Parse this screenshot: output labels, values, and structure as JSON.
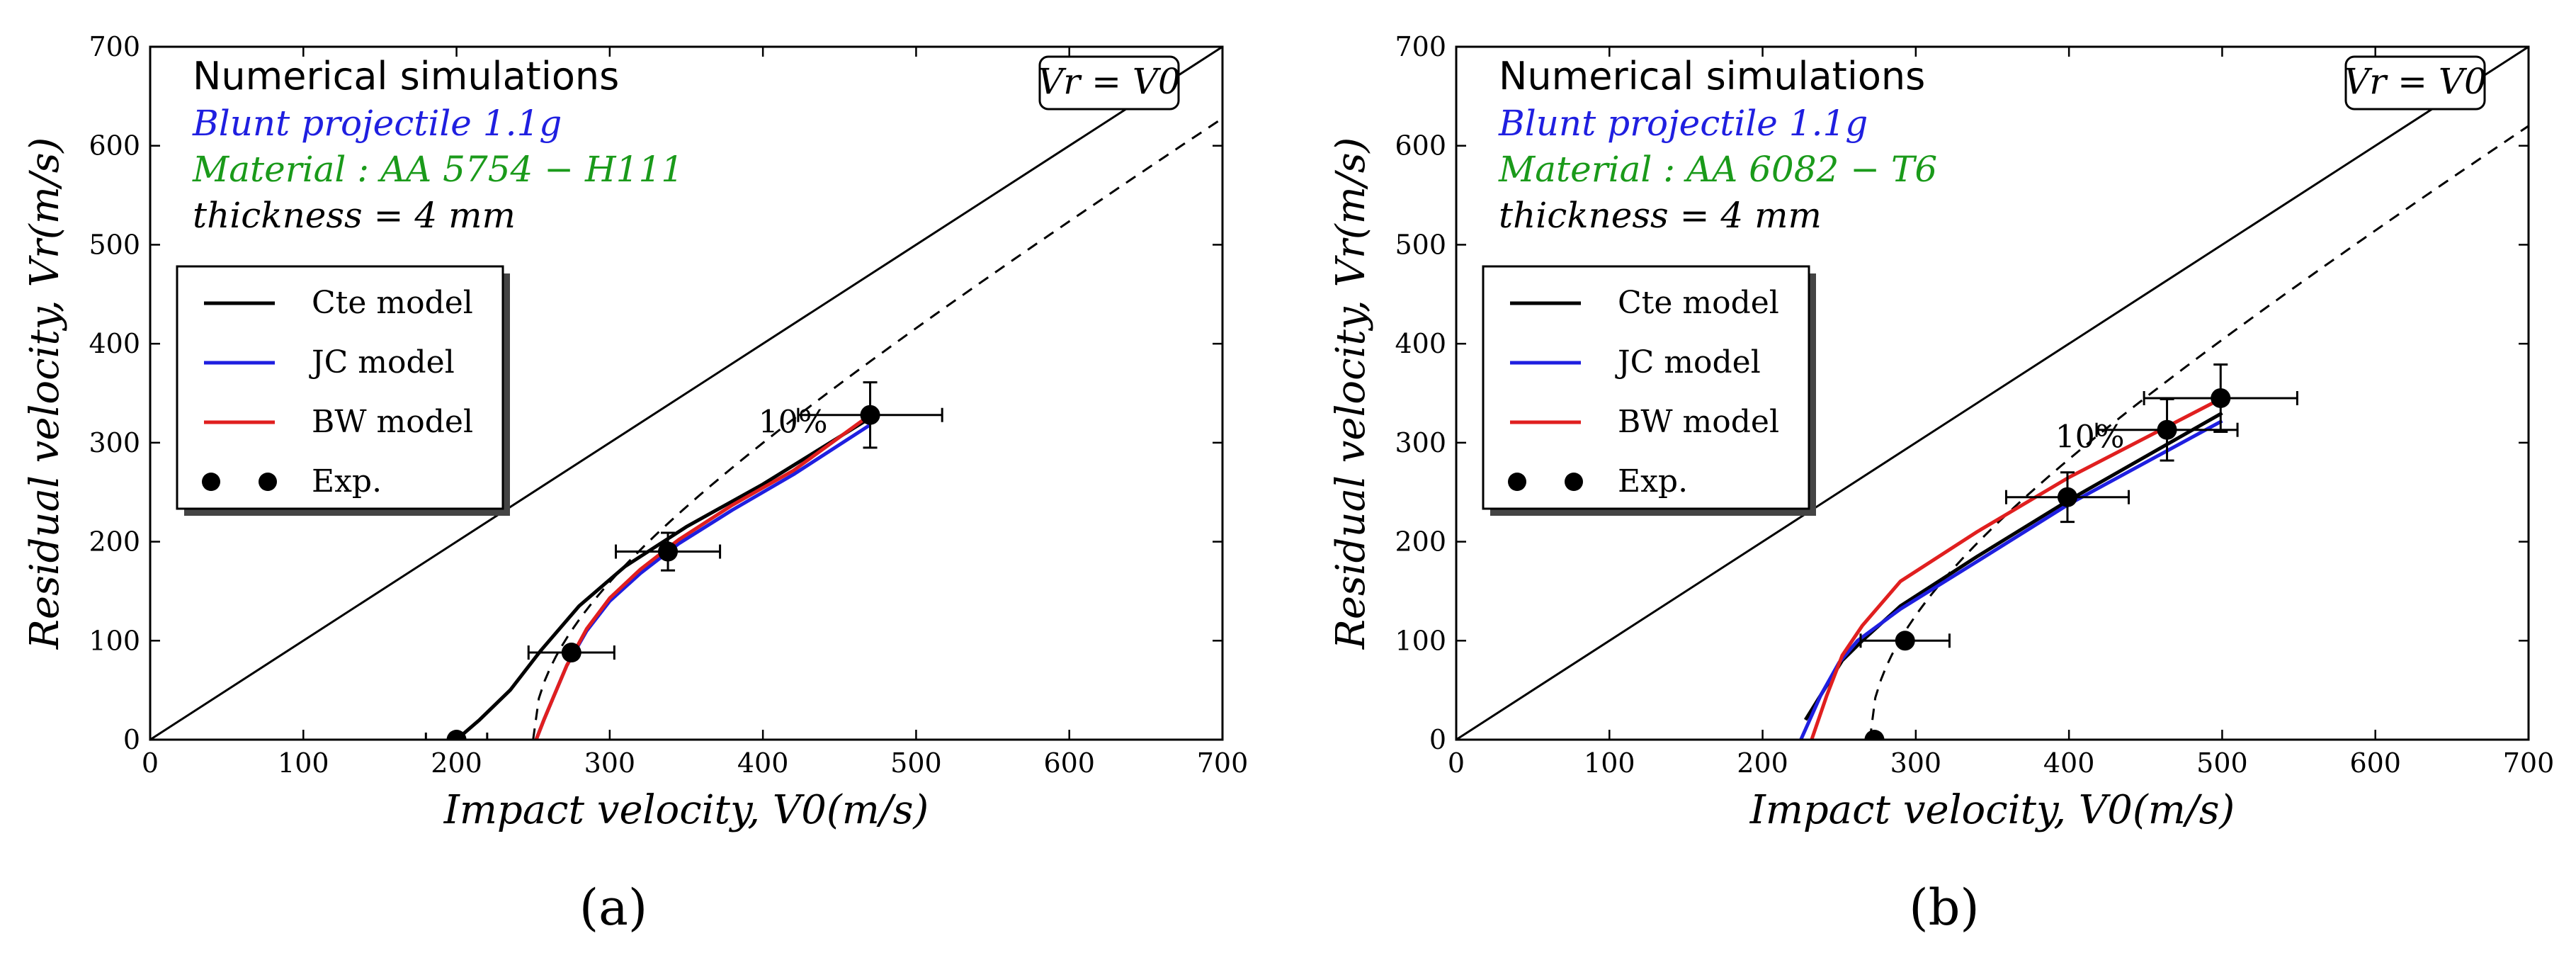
{
  "chart_data": [
    {
      "type": "line",
      "panel_label": "(a)",
      "xlabel": "Impact velocity, V0(m/s)",
      "ylabel": "Residual velocity, Vr(m/s)",
      "xlim": [
        0,
        700
      ],
      "ylim": [
        0,
        700
      ],
      "xticks": [
        "0",
        "100",
        "200",
        "300",
        "400",
        "500",
        "600",
        "700"
      ],
      "yticks": [
        "0",
        "100",
        "200",
        "300",
        "400",
        "500",
        "600",
        "700"
      ],
      "annotations": {
        "title": "Numerical simulations",
        "projectile": "Blunt projectile 1.1g",
        "material": "Material :  AA 5754 − H111",
        "thickness": "thickness = 4 mm",
        "identity_label": "Vr = V0",
        "error_label": "10%"
      },
      "colors": {
        "title": "#000000",
        "projectile": "#1f1fe0",
        "material": "#1a9a1a",
        "thickness": "#000000"
      },
      "legend": {
        "placement": "mid-left",
        "entries": [
          "Cte model",
          "JC model",
          "BW model",
          "Exp."
        ]
      },
      "series": [
        {
          "name": "Cte model",
          "color": "#000000",
          "x": [
            200,
            215,
            235,
            255,
            280,
            310,
            350,
            400,
            470
          ],
          "y": [
            0,
            20,
            50,
            90,
            135,
            175,
            215,
            258,
            325
          ]
        },
        {
          "name": "JC model",
          "color": "#1f1fe0",
          "x": [
            252,
            257,
            263,
            272,
            285,
            300,
            320,
            345,
            380,
            420,
            470
          ],
          "y": [
            0,
            20,
            42,
            75,
            110,
            140,
            168,
            198,
            232,
            268,
            318
          ]
        },
        {
          "name": "BW model",
          "color": "#e01f1f",
          "x": [
            252,
            257,
            263,
            272,
            285,
            300,
            320,
            345,
            380,
            420,
            470
          ],
          "y": [
            0,
            20,
            42,
            75,
            112,
            143,
            172,
            202,
            237,
            272,
            328
          ]
        }
      ],
      "reference_line": {
        "name": "Vr = V0",
        "x": [
          0,
          700
        ],
        "y": [
          0,
          700
        ]
      },
      "dashed_fit": {
        "vbl": 250,
        "x_max": 700
      },
      "experiments": [
        {
          "x": 200,
          "y": 0,
          "xerr": 20,
          "yerr": 0
        },
        {
          "x": 275,
          "y": 88,
          "xerr": 28,
          "yerr": 0
        },
        {
          "x": 338,
          "y": 190,
          "xerr": 34,
          "yerr": 19
        },
        {
          "x": 470,
          "y": 328,
          "xerr": 47,
          "yerr": 33
        }
      ]
    },
    {
      "type": "line",
      "panel_label": "(b)",
      "xlabel": "Impact velocity, V0(m/s)",
      "ylabel": "Residual velocity, Vr(m/s)",
      "xlim": [
        0,
        700
      ],
      "ylim": [
        0,
        700
      ],
      "xticks": [
        "0",
        "100",
        "200",
        "300",
        "400",
        "500",
        "600",
        "700"
      ],
      "yticks": [
        "0",
        "100",
        "200",
        "300",
        "400",
        "500",
        "600",
        "700"
      ],
      "annotations": {
        "title": "Numerical simulations",
        "projectile": "Blunt projectile 1.1g",
        "material": "Material :  AA 6082 − T6",
        "thickness": "thickness = 4 mm",
        "identity_label": "Vr = V0",
        "error_label": "10%"
      },
      "colors": {
        "title": "#000000",
        "projectile": "#1f1fe0",
        "material": "#1a9a1a",
        "thickness": "#000000"
      },
      "legend": {
        "placement": "mid-left",
        "entries": [
          "Cte model",
          "JC model",
          "BW model",
          "Exp."
        ]
      },
      "series": [
        {
          "name": "Cte model",
          "color": "#000000",
          "x": [
            228,
            240,
            252,
            265,
            290,
            340,
            400,
            500
          ],
          "y": [
            20,
            50,
            80,
            100,
            135,
            185,
            242,
            330
          ]
        },
        {
          "name": "JC model",
          "color": "#1f1fe0",
          "x": [
            225,
            238,
            250,
            262,
            290,
            340,
            400,
            500
          ],
          "y": [
            0,
            45,
            78,
            100,
            132,
            180,
            238,
            322
          ]
        },
        {
          "name": "BW model",
          "color": "#e01f1f",
          "x": [
            232,
            242,
            252,
            265,
            290,
            340,
            400,
            500
          ],
          "y": [
            0,
            45,
            85,
            115,
            160,
            210,
            265,
            345
          ]
        }
      ],
      "reference_line": {
        "name": "Vr = V0",
        "x": [
          0,
          700
        ],
        "y": [
          0,
          700
        ]
      },
      "dashed_fit": {
        "vbl": 270,
        "x_max": 700
      },
      "experiments": [
        {
          "x": 273,
          "y": 0,
          "xerr": 0,
          "yerr": 0
        },
        {
          "x": 293,
          "y": 100,
          "xerr": 29,
          "yerr": 0
        },
        {
          "x": 399,
          "y": 245,
          "xerr": 40,
          "yerr": 25
        },
        {
          "x": 464,
          "y": 313,
          "xerr": 46,
          "yerr": 31
        },
        {
          "x": 499,
          "y": 345,
          "xerr": 50,
          "yerr": 34
        }
      ]
    }
  ]
}
